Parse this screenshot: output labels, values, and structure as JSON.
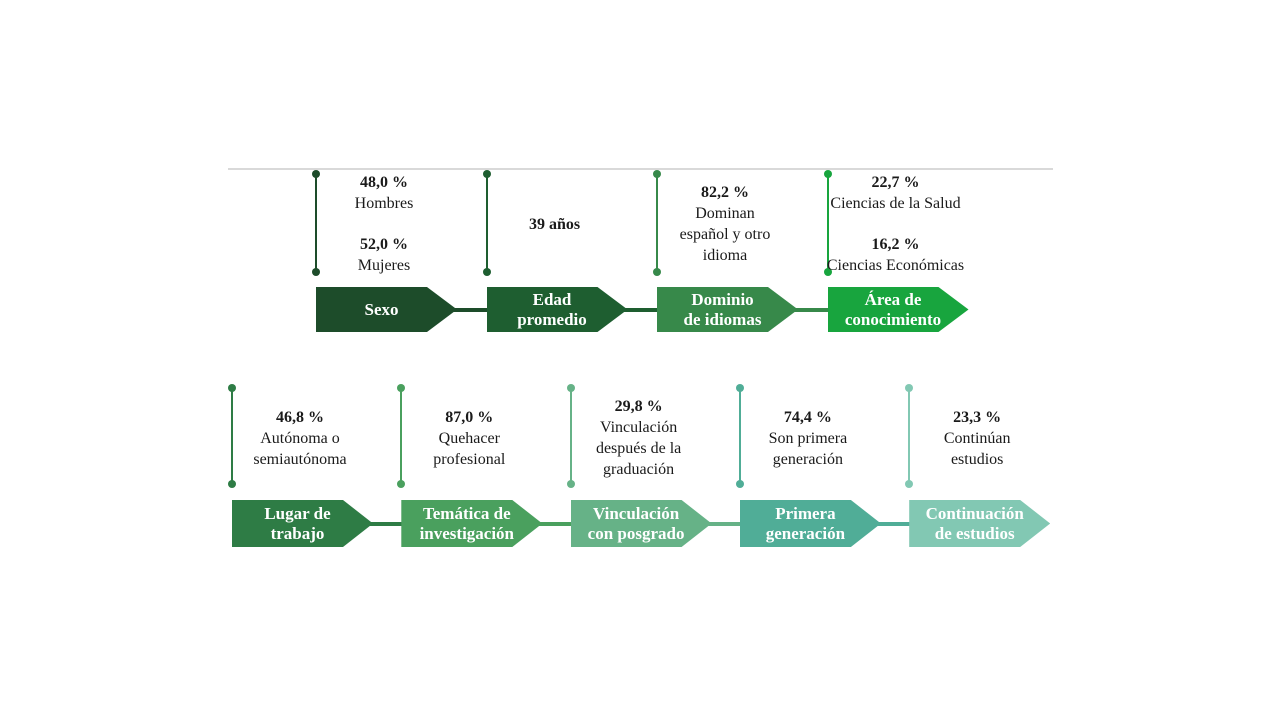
{
  "divider_color": "#d9d9d9",
  "rows": [
    {
      "items": [
        {
          "label_lines": [
            "Sexo"
          ],
          "color": "#1d4c2a",
          "stats": [
            {
              "value": "48,0 %",
              "label_lines": [
                "Hombres"
              ]
            },
            {
              "value": "52,0 %",
              "label_lines": [
                "Mujeres"
              ]
            }
          ]
        },
        {
          "label_lines": [
            "Edad",
            "promedio"
          ],
          "color": "#1e5e30",
          "stats": [
            {
              "value": "39 años",
              "label_lines": []
            }
          ]
        },
        {
          "label_lines": [
            "Dominio",
            "de idiomas"
          ],
          "color": "#37894a",
          "stats": [
            {
              "value": "82,2 %",
              "label_lines": [
                "Dominan",
                "español y otro",
                "idioma"
              ]
            }
          ]
        },
        {
          "label_lines": [
            "Área de",
            "conocimiento"
          ],
          "color": "#18a53e",
          "stats": [
            {
              "value": "22,7 %",
              "label_lines": [
                "Ciencias de la Salud"
              ]
            },
            {
              "value": "16,2 %",
              "label_lines": [
                "Ciencias Económicas"
              ]
            }
          ]
        }
      ]
    },
    {
      "items": [
        {
          "label_lines": [
            "Lugar de",
            "trabajo"
          ],
          "color": "#2e7c45",
          "stats": [
            {
              "value": "46,8 %",
              "label_lines": [
                "Autónoma o",
                "semiautónoma"
              ]
            }
          ]
        },
        {
          "label_lines": [
            "Temática de",
            "investigación"
          ],
          "color": "#4aa05e",
          "stats": [
            {
              "value": "87,0 %",
              "label_lines": [
                "Quehacer",
                "profesional"
              ]
            }
          ]
        },
        {
          "label_lines": [
            "Vinculación",
            "con posgrado"
          ],
          "color": "#66b287",
          "stats": [
            {
              "value": "29,8 %",
              "label_lines": [
                "Vinculación",
                "después de la",
                "graduación"
              ]
            }
          ]
        },
        {
          "label_lines": [
            "Primera",
            "generación"
          ],
          "color": "#50ad97",
          "stats": [
            {
              "value": "74,4 %",
              "label_lines": [
                "Son primera",
                "generación"
              ]
            }
          ]
        },
        {
          "label_lines": [
            "Continuación",
            "de estudios"
          ],
          "color": "#82c8b3",
          "stats": [
            {
              "value": "23,3 %",
              "label_lines": [
                "Continúan",
                "estudios"
              ]
            }
          ]
        }
      ]
    }
  ]
}
